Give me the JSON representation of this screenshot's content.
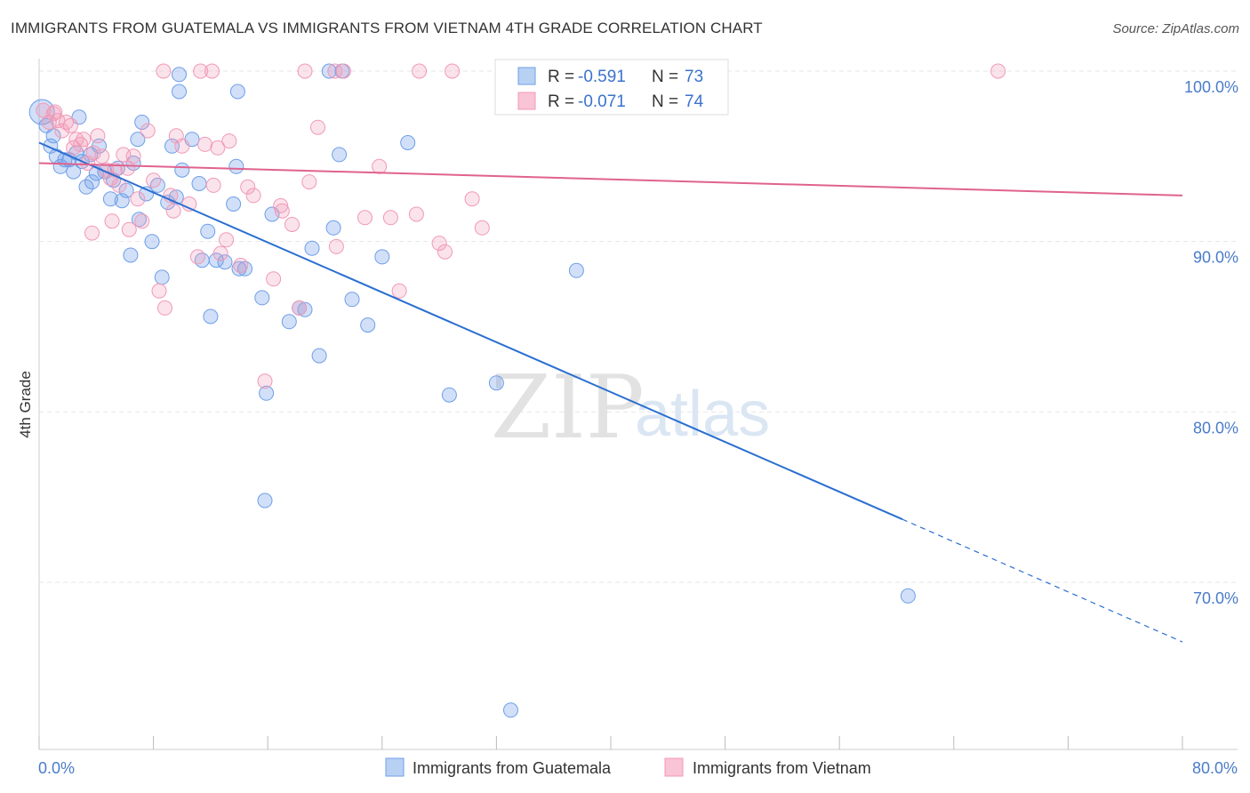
{
  "title": "IMMIGRANTS FROM GUATEMALA VS IMMIGRANTS FROM VIETNAM 4TH GRADE CORRELATION CHART",
  "source": "Source: ZipAtlas.com",
  "watermark": {
    "part1": "ZIP",
    "part2": "atlas"
  },
  "colors": {
    "guatemala": "#6f9ee8",
    "guatemala_line": "#2a6fd1",
    "vietnam": "#f199b6",
    "vietnam_line": "#e0628f",
    "tick_text": "#4a7cc9",
    "grid": "#e6e6e6"
  },
  "stats": {
    "guatemala": {
      "r_label": "R =",
      "r_value": "-0.591",
      "n_label": "N =",
      "n_value": "73"
    },
    "vietnam": {
      "r_label": "R =",
      "r_value": "-0.071",
      "n_label": "N =",
      "n_value": "74"
    }
  },
  "chart_data": {
    "type": "scatter",
    "xlabel": "",
    "ylabel": "4th Grade",
    "xlim": [
      0,
      80
    ],
    "ylim": [
      60,
      102
    ],
    "x_tick_labels": [
      "0.0%",
      "80.0%"
    ],
    "y_ticks": [
      {
        "value": 100,
        "label": "100.0%"
      },
      {
        "value": 90,
        "label": "90.0%"
      },
      {
        "value": 80,
        "label": "80.0%"
      },
      {
        "value": 70,
        "label": "70.0%"
      }
    ],
    "grid": true,
    "legend_position": "bottom-center",
    "series": [
      {
        "name": "Immigrants from Guatemala",
        "color": "#6f9ee8",
        "points": [
          [
            0.2,
            97.6
          ],
          [
            0.5,
            96.8
          ],
          [
            0.8,
            95.6
          ],
          [
            1.2,
            95.0
          ],
          [
            1.5,
            94.4
          ],
          [
            1.8,
            94.8
          ],
          [
            2.1,
            94.8
          ],
          [
            2.4,
            94.1
          ],
          [
            2.6,
            95.2
          ],
          [
            3.0,
            94.7
          ],
          [
            3.3,
            93.2
          ],
          [
            3.7,
            93.5
          ],
          [
            4.0,
            94.0
          ],
          [
            4.2,
            95.6
          ],
          [
            4.6,
            94.1
          ],
          [
            5.0,
            92.5
          ],
          [
            5.2,
            93.6
          ],
          [
            5.5,
            94.3
          ],
          [
            5.8,
            92.4
          ],
          [
            6.1,
            93.0
          ],
          [
            6.4,
            89.2
          ],
          [
            6.9,
            96.0
          ],
          [
            7.0,
            91.3
          ],
          [
            7.5,
            92.8
          ],
          [
            7.9,
            90.0
          ],
          [
            8.3,
            93.3
          ],
          [
            8.6,
            87.9
          ],
          [
            9.0,
            92.3
          ],
          [
            9.3,
            95.6
          ],
          [
            9.6,
            92.6
          ],
          [
            9.8,
            98.8
          ],
          [
            10.0,
            94.2
          ],
          [
            10.7,
            96.0
          ],
          [
            11.4,
            88.9
          ],
          [
            11.8,
            90.6
          ],
          [
            12.0,
            85.6
          ],
          [
            12.4,
            88.9
          ],
          [
            13.0,
            88.8
          ],
          [
            13.6,
            92.2
          ],
          [
            13.8,
            94.4
          ],
          [
            14.0,
            88.4
          ],
          [
            14.4,
            88.4
          ],
          [
            15.6,
            86.7
          ],
          [
            15.9,
            81.1
          ],
          [
            15.8,
            74.8
          ],
          [
            17.5,
            85.3
          ],
          [
            18.2,
            86.1
          ],
          [
            18.6,
            86.0
          ],
          [
            19.1,
            89.6
          ],
          [
            19.6,
            83.3
          ],
          [
            20.6,
            90.8
          ],
          [
            21.0,
            95.1
          ],
          [
            21.9,
            86.6
          ],
          [
            23.0,
            85.1
          ],
          [
            24.0,
            89.1
          ],
          [
            25.8,
            95.8
          ],
          [
            28.7,
            81.0
          ],
          [
            32.0,
            81.7
          ],
          [
            33.0,
            62.5
          ],
          [
            37.6,
            88.3
          ],
          [
            60.8,
            69.2
          ],
          [
            20.3,
            100.0
          ],
          [
            21.2,
            100.0
          ],
          [
            37.0,
            100.0
          ],
          [
            9.8,
            99.8
          ],
          [
            13.9,
            98.8
          ],
          [
            7.2,
            97.0
          ],
          [
            2.8,
            97.3
          ],
          [
            1.0,
            96.2
          ],
          [
            3.6,
            95.1
          ],
          [
            6.6,
            94.6
          ],
          [
            11.2,
            93.4
          ],
          [
            16.3,
            91.6
          ]
        ]
      },
      {
        "name": "Immigrants from Vietnam",
        "color": "#f199b6",
        "points": [
          [
            0.3,
            97.7
          ],
          [
            0.7,
            97.0
          ],
          [
            1.0,
            97.5
          ],
          [
            1.3,
            97.1
          ],
          [
            1.6,
            96.5
          ],
          [
            1.9,
            97.0
          ],
          [
            2.2,
            96.8
          ],
          [
            2.6,
            96.0
          ],
          [
            2.9,
            95.7
          ],
          [
            3.1,
            96.0
          ],
          [
            3.4,
            94.6
          ],
          [
            3.8,
            95.2
          ],
          [
            4.1,
            96.2
          ],
          [
            4.4,
            95.0
          ],
          [
            4.7,
            94.2
          ],
          [
            5.0,
            93.7
          ],
          [
            5.3,
            94.2
          ],
          [
            5.6,
            93.3
          ],
          [
            5.9,
            95.1
          ],
          [
            6.2,
            94.3
          ],
          [
            6.6,
            95.0
          ],
          [
            6.9,
            92.5
          ],
          [
            7.2,
            91.2
          ],
          [
            7.6,
            96.5
          ],
          [
            8.0,
            93.6
          ],
          [
            8.4,
            87.1
          ],
          [
            8.8,
            86.1
          ],
          [
            9.2,
            92.7
          ],
          [
            9.6,
            96.2
          ],
          [
            10.0,
            95.6
          ],
          [
            10.5,
            92.2
          ],
          [
            11.1,
            89.1
          ],
          [
            11.6,
            95.7
          ],
          [
            12.2,
            93.3
          ],
          [
            12.7,
            89.3
          ],
          [
            13.3,
            95.9
          ],
          [
            14.1,
            88.6
          ],
          [
            15.0,
            92.7
          ],
          [
            15.8,
            81.8
          ],
          [
            16.4,
            87.8
          ],
          [
            17.0,
            91.8
          ],
          [
            17.7,
            91.0
          ],
          [
            18.2,
            86.1
          ],
          [
            18.9,
            93.5
          ],
          [
            19.5,
            96.7
          ],
          [
            20.8,
            89.7
          ],
          [
            21.3,
            100.0
          ],
          [
            22.8,
            91.4
          ],
          [
            23.8,
            94.4
          ],
          [
            24.6,
            91.4
          ],
          [
            25.2,
            87.1
          ],
          [
            26.4,
            91.6
          ],
          [
            28.0,
            89.9
          ],
          [
            28.4,
            89.4
          ],
          [
            30.3,
            92.5
          ],
          [
            31.0,
            90.8
          ],
          [
            8.7,
            100.0
          ],
          [
            11.3,
            100.0
          ],
          [
            12.1,
            100.0
          ],
          [
            18.6,
            100.0
          ],
          [
            20.7,
            100.0
          ],
          [
            26.6,
            100.0
          ],
          [
            28.9,
            100.0
          ],
          [
            67.1,
            100.0
          ],
          [
            12.5,
            95.5
          ],
          [
            14.6,
            93.2
          ],
          [
            9.4,
            91.8
          ],
          [
            5.1,
            91.2
          ],
          [
            3.7,
            90.5
          ],
          [
            2.4,
            95.5
          ],
          [
            1.1,
            97.6
          ],
          [
            6.3,
            90.7
          ],
          [
            13.1,
            90.1
          ],
          [
            16.9,
            92.1
          ]
        ]
      }
    ],
    "trend_lines": [
      {
        "series": "Immigrants from Guatemala",
        "x0": 0,
        "y0": 95.8,
        "x1": 60.4,
        "y1": 73.7,
        "dashed_to_x": 80,
        "dashed_to_y": 66.5
      },
      {
        "series": "Immigrants from Vietnam",
        "x0": 0,
        "y0": 94.6,
        "x1": 80,
        "y1": 92.7
      }
    ]
  }
}
